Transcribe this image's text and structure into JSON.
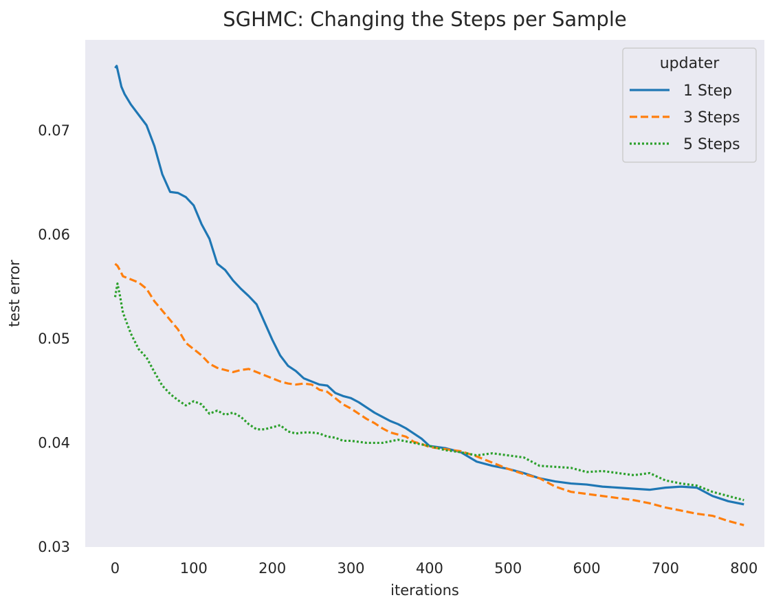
{
  "chart_data": {
    "type": "line",
    "title": "SGHMC: Changing the Steps per Sample",
    "xlabel": "iterations",
    "ylabel": "test error",
    "xlim": [
      -38,
      826
    ],
    "ylim": [
      0.03,
      0.0787
    ],
    "xticks": [
      0,
      100,
      200,
      300,
      400,
      500,
      600,
      700,
      800
    ],
    "yticks": [
      0.03,
      0.04,
      0.05,
      0.06,
      0.07
    ],
    "ytick_labels": [
      "0.03",
      "0.04",
      "0.05",
      "0.06",
      "0.07"
    ],
    "grid": false,
    "background": "#eaeaf2",
    "legend": {
      "title": "updater",
      "placement": "top-right"
    },
    "series": [
      {
        "name": "1 Step",
        "color": "#1f77b4",
        "dash": "solid",
        "x": [
          0,
          2,
          5,
          8,
          12,
          20,
          30,
          40,
          50,
          60,
          70,
          80,
          90,
          100,
          110,
          120,
          130,
          140,
          150,
          160,
          170,
          180,
          190,
          200,
          210,
          220,
          230,
          240,
          250,
          260,
          270,
          280,
          290,
          300,
          310,
          320,
          330,
          340,
          350,
          360,
          370,
          380,
          390,
          400,
          420,
          440,
          460,
          480,
          500,
          520,
          540,
          560,
          580,
          600,
          620,
          640,
          660,
          680,
          700,
          720,
          740,
          760,
          780,
          800
        ],
        "values": [
          0.076,
          0.0762,
          0.0752,
          0.0742,
          0.0735,
          0.0725,
          0.0715,
          0.0705,
          0.0685,
          0.0658,
          0.0641,
          0.064,
          0.0636,
          0.0628,
          0.061,
          0.0596,
          0.0572,
          0.0566,
          0.0556,
          0.0548,
          0.0541,
          0.0533,
          0.0516,
          0.0499,
          0.0484,
          0.0474,
          0.0469,
          0.0462,
          0.0459,
          0.0456,
          0.0455,
          0.0448,
          0.0445,
          0.0443,
          0.0439,
          0.0434,
          0.0429,
          0.0425,
          0.0421,
          0.0418,
          0.0414,
          0.0409,
          0.0404,
          0.0397,
          0.0395,
          0.0391,
          0.0382,
          0.0378,
          0.0375,
          0.0371,
          0.0366,
          0.0363,
          0.0361,
          0.036,
          0.0358,
          0.0357,
          0.0356,
          0.0355,
          0.0357,
          0.0358,
          0.0357,
          0.0349,
          0.0344,
          0.0341
        ]
      },
      {
        "name": "3 Steps",
        "color": "#ff7f0e",
        "dash": "dashed",
        "x": [
          0,
          3,
          6,
          10,
          20,
          30,
          40,
          50,
          60,
          70,
          80,
          90,
          100,
          110,
          120,
          130,
          140,
          150,
          160,
          170,
          180,
          190,
          200,
          210,
          220,
          230,
          240,
          250,
          260,
          270,
          280,
          290,
          300,
          310,
          320,
          330,
          340,
          350,
          360,
          370,
          380,
          390,
          400,
          420,
          440,
          460,
          480,
          500,
          520,
          540,
          560,
          580,
          600,
          620,
          640,
          660,
          680,
          700,
          720,
          740,
          760,
          780,
          800
        ],
        "values": [
          0.0572,
          0.057,
          0.0566,
          0.056,
          0.0557,
          0.0554,
          0.0548,
          0.0536,
          0.0527,
          0.0518,
          0.0509,
          0.0496,
          0.049,
          0.0484,
          0.0476,
          0.0472,
          0.047,
          0.0468,
          0.047,
          0.0471,
          0.0468,
          0.0465,
          0.0462,
          0.0459,
          0.0457,
          0.0456,
          0.0457,
          0.0456,
          0.0451,
          0.0449,
          0.0443,
          0.0437,
          0.0433,
          0.0428,
          0.0423,
          0.0419,
          0.0414,
          0.041,
          0.0408,
          0.0406,
          0.0401,
          0.0399,
          0.0396,
          0.0394,
          0.0392,
          0.0387,
          0.0381,
          0.0375,
          0.037,
          0.0366,
          0.0358,
          0.0353,
          0.0351,
          0.0349,
          0.0347,
          0.0345,
          0.0342,
          0.0338,
          0.0335,
          0.0332,
          0.033,
          0.0325,
          0.0321
        ]
      },
      {
        "name": "5 Steps",
        "color": "#2ca02c",
        "dash": "dotted",
        "x": [
          0,
          3,
          6,
          10,
          20,
          30,
          40,
          50,
          60,
          70,
          80,
          90,
          100,
          110,
          120,
          130,
          140,
          150,
          160,
          170,
          180,
          190,
          200,
          210,
          220,
          230,
          240,
          250,
          260,
          270,
          280,
          290,
          300,
          320,
          340,
          360,
          380,
          400,
          420,
          440,
          460,
          480,
          500,
          520,
          540,
          560,
          580,
          600,
          620,
          640,
          660,
          680,
          700,
          720,
          740,
          760,
          780,
          800
        ],
        "values": [
          0.054,
          0.0553,
          0.0542,
          0.0525,
          0.0505,
          0.049,
          0.0482,
          0.0468,
          0.0455,
          0.0447,
          0.0441,
          0.0436,
          0.044,
          0.0437,
          0.0428,
          0.0431,
          0.0427,
          0.0429,
          0.0425,
          0.0418,
          0.0413,
          0.0413,
          0.0415,
          0.0417,
          0.0411,
          0.0409,
          0.041,
          0.041,
          0.0409,
          0.0406,
          0.0405,
          0.0402,
          0.0402,
          0.04,
          0.04,
          0.0403,
          0.04,
          0.0397,
          0.0393,
          0.0391,
          0.0388,
          0.039,
          0.0388,
          0.0386,
          0.0378,
          0.0377,
          0.0376,
          0.0372,
          0.0373,
          0.0371,
          0.0369,
          0.0371,
          0.0364,
          0.0361,
          0.0359,
          0.0353,
          0.0349,
          0.0345
        ]
      }
    ]
  }
}
